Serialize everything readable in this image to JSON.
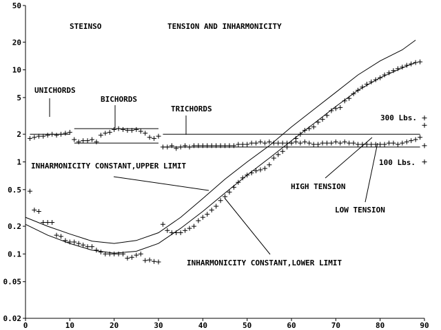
{
  "chart_data": {
    "type": "scatter",
    "title": "TENSION AND INHARMONICITY",
    "subtitle": "STEINSO",
    "x_scale": "linear",
    "y_scale": "log",
    "xlim": [
      0,
      90
    ],
    "ylim": [
      0.02,
      50
    ],
    "x_ticks": [
      "0",
      "10",
      "20",
      "30",
      "40",
      "50",
      "60",
      "70",
      "80",
      "90"
    ],
    "y_ticks": [
      "50",
      "20",
      "10",
      "5",
      "2",
      "1",
      "0.5",
      "0.2",
      "0.1",
      "0.05",
      "0.02"
    ],
    "grid": false,
    "series": [
      {
        "name": "tension",
        "marker": "+",
        "points": [
          [
            1,
            1.8
          ],
          [
            2,
            1.85
          ],
          [
            3,
            1.9
          ],
          [
            4,
            1.9
          ],
          [
            5,
            1.95
          ],
          [
            6,
            2.0
          ],
          [
            7,
            1.95
          ],
          [
            8,
            2.0
          ],
          [
            9,
            2.05
          ],
          [
            10,
            2.1
          ],
          [
            11,
            1.75
          ],
          [
            12,
            1.65
          ],
          [
            13,
            1.7
          ],
          [
            14,
            1.7
          ],
          [
            15,
            1.75
          ],
          [
            16,
            1.65
          ],
          [
            17,
            1.95
          ],
          [
            18,
            2.05
          ],
          [
            19,
            2.1
          ],
          [
            20,
            2.25
          ],
          [
            21,
            2.3
          ],
          [
            22,
            2.25
          ],
          [
            23,
            2.2
          ],
          [
            24,
            2.2
          ],
          [
            25,
            2.25
          ],
          [
            26,
            2.15
          ],
          [
            27,
            2.05
          ],
          [
            28,
            1.85
          ],
          [
            29,
            1.8
          ],
          [
            30,
            1.9
          ],
          [
            31,
            1.45
          ],
          [
            32,
            1.45
          ],
          [
            33,
            1.5
          ],
          [
            34,
            1.4
          ],
          [
            35,
            1.45
          ],
          [
            36,
            1.5
          ],
          [
            37,
            1.45
          ],
          [
            38,
            1.5
          ],
          [
            39,
            1.5
          ],
          [
            40,
            1.5
          ],
          [
            41,
            1.5
          ],
          [
            42,
            1.5
          ],
          [
            43,
            1.5
          ],
          [
            44,
            1.5
          ],
          [
            45,
            1.5
          ],
          [
            46,
            1.5
          ],
          [
            47,
            1.5
          ],
          [
            48,
            1.55
          ],
          [
            49,
            1.55
          ],
          [
            50,
            1.55
          ],
          [
            51,
            1.6
          ],
          [
            52,
            1.6
          ],
          [
            53,
            1.65
          ],
          [
            54,
            1.6
          ],
          [
            55,
            1.65
          ],
          [
            56,
            1.6
          ],
          [
            57,
            1.6
          ],
          [
            58,
            1.6
          ],
          [
            59,
            1.6
          ],
          [
            60,
            1.6
          ],
          [
            61,
            1.65
          ],
          [
            62,
            1.6
          ],
          [
            63,
            1.65
          ],
          [
            64,
            1.6
          ],
          [
            65,
            1.55
          ],
          [
            66,
            1.55
          ],
          [
            67,
            1.6
          ],
          [
            68,
            1.6
          ],
          [
            69,
            1.6
          ],
          [
            70,
            1.65
          ],
          [
            71,
            1.6
          ],
          [
            72,
            1.65
          ],
          [
            73,
            1.6
          ],
          [
            74,
            1.6
          ],
          [
            75,
            1.55
          ],
          [
            76,
            1.55
          ],
          [
            77,
            1.55
          ],
          [
            78,
            1.55
          ],
          [
            79,
            1.55
          ],
          [
            80,
            1.55
          ],
          [
            81,
            1.55
          ],
          [
            82,
            1.6
          ],
          [
            83,
            1.6
          ],
          [
            84,
            1.55
          ],
          [
            85,
            1.6
          ],
          [
            86,
            1.65
          ],
          [
            87,
            1.7
          ],
          [
            88,
            1.75
          ],
          [
            89,
            1.85
          ],
          [
            90,
            3.0
          ],
          [
            90,
            2.5
          ],
          [
            90,
            1.5
          ],
          [
            90,
            1.0
          ]
        ]
      },
      {
        "name": "inharmonicity",
        "marker": "+",
        "points": [
          [
            1,
            0.48
          ],
          [
            2,
            0.3
          ],
          [
            3,
            0.29
          ],
          [
            4,
            0.22
          ],
          [
            5,
            0.22
          ],
          [
            6,
            0.22
          ],
          [
            7,
            0.16
          ],
          [
            8,
            0.155
          ],
          [
            9,
            0.14
          ],
          [
            10,
            0.135
          ],
          [
            11,
            0.135
          ],
          [
            12,
            0.13
          ],
          [
            13,
            0.125
          ],
          [
            14,
            0.12
          ],
          [
            15,
            0.12
          ],
          [
            16,
            0.11
          ],
          [
            17,
            0.105
          ],
          [
            18,
            0.1
          ],
          [
            19,
            0.1
          ],
          [
            20,
            0.1
          ],
          [
            21,
            0.1
          ],
          [
            22,
            0.1
          ],
          [
            23,
            0.09
          ],
          [
            24,
            0.092
          ],
          [
            25,
            0.097
          ],
          [
            26,
            0.1
          ],
          [
            27,
            0.085
          ],
          [
            28,
            0.086
          ],
          [
            29,
            0.083
          ],
          [
            30,
            0.082
          ],
          [
            31,
            0.21
          ],
          [
            32,
            0.18
          ],
          [
            33,
            0.17
          ],
          [
            34,
            0.17
          ],
          [
            35,
            0.17
          ],
          [
            36,
            0.18
          ],
          [
            37,
            0.19
          ],
          [
            38,
            0.2
          ],
          [
            39,
            0.23
          ],
          [
            40,
            0.25
          ],
          [
            41,
            0.27
          ],
          [
            42,
            0.3
          ],
          [
            43,
            0.33
          ],
          [
            44,
            0.38
          ],
          [
            45,
            0.42
          ],
          [
            46,
            0.47
          ],
          [
            47,
            0.53
          ],
          [
            48,
            0.6
          ],
          [
            49,
            0.67
          ],
          [
            50,
            0.72
          ],
          [
            51,
            0.76
          ],
          [
            52,
            0.8
          ],
          [
            53,
            0.82
          ],
          [
            54,
            0.85
          ],
          [
            55,
            0.93
          ],
          [
            56,
            1.1
          ],
          [
            57,
            1.2
          ],
          [
            58,
            1.3
          ],
          [
            59,
            1.45
          ],
          [
            60,
            1.6
          ],
          [
            61,
            1.8
          ],
          [
            62,
            2.0
          ],
          [
            63,
            2.2
          ],
          [
            64,
            2.3
          ],
          [
            65,
            2.4
          ],
          [
            66,
            2.7
          ],
          [
            67,
            2.9
          ],
          [
            68,
            3.2
          ],
          [
            69,
            3.6
          ],
          [
            70,
            3.8
          ],
          [
            71,
            3.9
          ],
          [
            72,
            4.6
          ],
          [
            73,
            4.9
          ],
          [
            74,
            5.5
          ],
          [
            75,
            6.0
          ],
          [
            76,
            6.5
          ],
          [
            77,
            7.0
          ],
          [
            78,
            7.4
          ],
          [
            79,
            7.8
          ],
          [
            80,
            8.2
          ],
          [
            81,
            8.8
          ],
          [
            82,
            9.3
          ],
          [
            83,
            9.8
          ],
          [
            84,
            10.3
          ],
          [
            85,
            10.7
          ],
          [
            86,
            11.2
          ],
          [
            87,
            11.6
          ],
          [
            88,
            12.0
          ],
          [
            89,
            12.2
          ]
        ]
      }
    ],
    "limit_curves": [
      {
        "label": "INHARMONICITY CONSTANT,UPPER LIMIT",
        "points": [
          [
            0,
            0.25
          ],
          [
            5,
            0.2
          ],
          [
            10,
            0.165
          ],
          [
            15,
            0.138
          ],
          [
            20,
            0.13
          ],
          [
            25,
            0.14
          ],
          [
            30,
            0.17
          ],
          [
            35,
            0.25
          ],
          [
            40,
            0.4
          ],
          [
            45,
            0.65
          ],
          [
            50,
            1.0
          ],
          [
            55,
            1.5
          ],
          [
            60,
            2.4
          ],
          [
            65,
            3.7
          ],
          [
            70,
            5.7
          ],
          [
            75,
            8.8
          ],
          [
            80,
            12.5
          ],
          [
            85,
            16.5
          ],
          [
            88,
            21.0
          ]
        ]
      },
      {
        "label": "INHARMONICITY CONSTANT,LOWER LIMIT",
        "points": [
          [
            0,
            0.21
          ],
          [
            5,
            0.16
          ],
          [
            10,
            0.13
          ],
          [
            15,
            0.11
          ],
          [
            20,
            0.102
          ],
          [
            25,
            0.107
          ],
          [
            30,
            0.13
          ],
          [
            35,
            0.19
          ],
          [
            40,
            0.29
          ],
          [
            45,
            0.46
          ],
          [
            50,
            0.72
          ],
          [
            55,
            1.1
          ],
          [
            60,
            1.7
          ],
          [
            65,
            2.6
          ],
          [
            70,
            4.0
          ],
          [
            75,
            6.0
          ],
          [
            80,
            8.2
          ],
          [
            85,
            10.5
          ],
          [
            88,
            12.0
          ]
        ]
      }
    ],
    "tension_lines": [
      {
        "x": [
          1,
          10
        ],
        "y": 2.0
      },
      {
        "x": [
          11,
          30
        ],
        "y": 2.3
      },
      {
        "x": [
          11,
          30
        ],
        "y": 1.6
      },
      {
        "x": [
          31,
          89
        ],
        "y": 2.0,
        "label": "300 Lbs."
      },
      {
        "x": [
          31,
          89
        ],
        "y": 1.45,
        "label": "100 Lbs."
      }
    ],
    "annotations": [
      {
        "text": "UNICHORDS"
      },
      {
        "text": "BICHORDS"
      },
      {
        "text": "TRICHORDS"
      },
      {
        "text": "300 Lbs."
      },
      {
        "text": "100 Lbs."
      },
      {
        "text": "HIGH TENSION"
      },
      {
        "text": "LOW TENSION"
      },
      {
        "text": "INHARMONICITY CONSTANT,UPPER LIMIT"
      },
      {
        "text": "INHARMONICITY CONSTANT,LOWER LIMIT"
      }
    ]
  }
}
